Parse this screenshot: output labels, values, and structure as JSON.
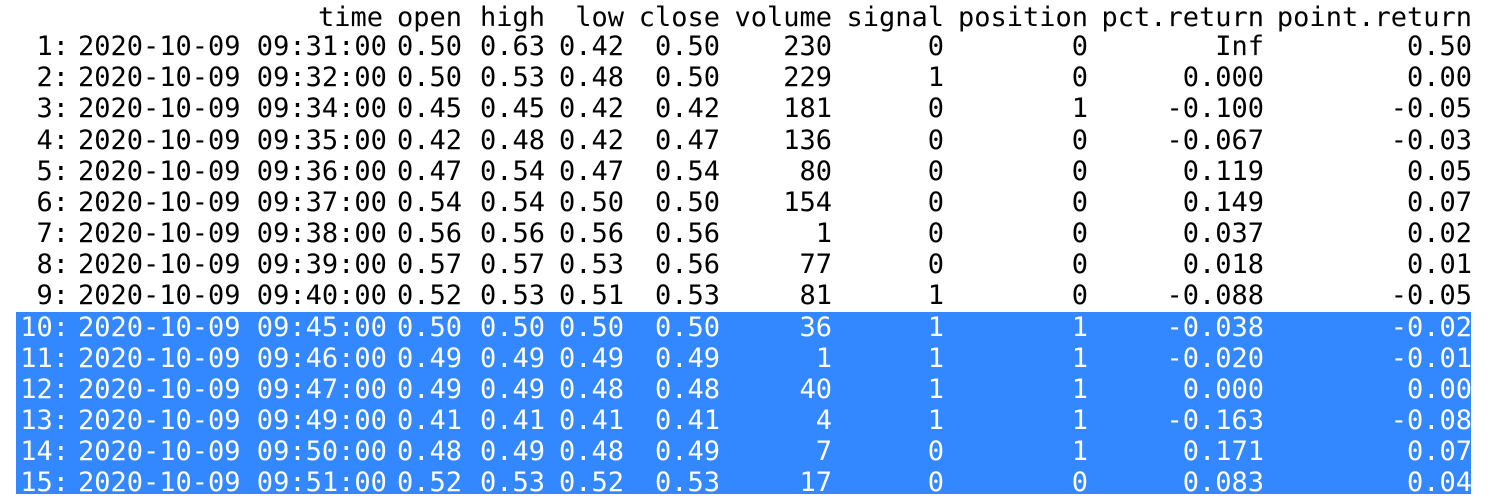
{
  "table": {
    "columns": [
      "",
      "time",
      "open",
      "high",
      "low",
      "close",
      "volume",
      "signal",
      "position",
      "pct.return",
      "point.return"
    ],
    "rows": [
      {
        "idx": "1:",
        "time": "2020-10-09 09:31:00",
        "open": "0.50",
        "high": "0.63",
        "low": "0.42",
        "close": "0.50",
        "volume": "230",
        "signal": "0",
        "position": "0",
        "pct_return": "Inf",
        "point_return": "0.50",
        "selected": false
      },
      {
        "idx": "2:",
        "time": "2020-10-09 09:32:00",
        "open": "0.50",
        "high": "0.53",
        "low": "0.48",
        "close": "0.50",
        "volume": "229",
        "signal": "1",
        "position": "0",
        "pct_return": "0.000",
        "point_return": "0.00",
        "selected": false
      },
      {
        "idx": "3:",
        "time": "2020-10-09 09:34:00",
        "open": "0.45",
        "high": "0.45",
        "low": "0.42",
        "close": "0.42",
        "volume": "181",
        "signal": "0",
        "position": "1",
        "pct_return": "-0.100",
        "point_return": "-0.05",
        "selected": false
      },
      {
        "idx": "4:",
        "time": "2020-10-09 09:35:00",
        "open": "0.42",
        "high": "0.48",
        "low": "0.42",
        "close": "0.47",
        "volume": "136",
        "signal": "0",
        "position": "0",
        "pct_return": "-0.067",
        "point_return": "-0.03",
        "selected": false
      },
      {
        "idx": "5:",
        "time": "2020-10-09 09:36:00",
        "open": "0.47",
        "high": "0.54",
        "low": "0.47",
        "close": "0.54",
        "volume": "80",
        "signal": "0",
        "position": "0",
        "pct_return": "0.119",
        "point_return": "0.05",
        "selected": false
      },
      {
        "idx": "6:",
        "time": "2020-10-09 09:37:00",
        "open": "0.54",
        "high": "0.54",
        "low": "0.50",
        "close": "0.50",
        "volume": "154",
        "signal": "0",
        "position": "0",
        "pct_return": "0.149",
        "point_return": "0.07",
        "selected": false
      },
      {
        "idx": "7:",
        "time": "2020-10-09 09:38:00",
        "open": "0.56",
        "high": "0.56",
        "low": "0.56",
        "close": "0.56",
        "volume": "1",
        "signal": "0",
        "position": "0",
        "pct_return": "0.037",
        "point_return": "0.02",
        "selected": false
      },
      {
        "idx": "8:",
        "time": "2020-10-09 09:39:00",
        "open": "0.57",
        "high": "0.57",
        "low": "0.53",
        "close": "0.56",
        "volume": "77",
        "signal": "0",
        "position": "0",
        "pct_return": "0.018",
        "point_return": "0.01",
        "selected": false
      },
      {
        "idx": "9:",
        "time": "2020-10-09 09:40:00",
        "open": "0.52",
        "high": "0.53",
        "low": "0.51",
        "close": "0.53",
        "volume": "81",
        "signal": "1",
        "position": "0",
        "pct_return": "-0.088",
        "point_return": "-0.05",
        "selected": false
      },
      {
        "idx": "10:",
        "time": "2020-10-09 09:45:00",
        "open": "0.50",
        "high": "0.50",
        "low": "0.50",
        "close": "0.50",
        "volume": "36",
        "signal": "1",
        "position": "1",
        "pct_return": "-0.038",
        "point_return": "-0.02",
        "selected": true
      },
      {
        "idx": "11:",
        "time": "2020-10-09 09:46:00",
        "open": "0.49",
        "high": "0.49",
        "low": "0.49",
        "close": "0.49",
        "volume": "1",
        "signal": "1",
        "position": "1",
        "pct_return": "-0.020",
        "point_return": "-0.01",
        "selected": true
      },
      {
        "idx": "12:",
        "time": "2020-10-09 09:47:00",
        "open": "0.49",
        "high": "0.49",
        "low": "0.48",
        "close": "0.48",
        "volume": "40",
        "signal": "1",
        "position": "1",
        "pct_return": "0.000",
        "point_return": "0.00",
        "selected": true
      },
      {
        "idx": "13:",
        "time": "2020-10-09 09:49:00",
        "open": "0.41",
        "high": "0.41",
        "low": "0.41",
        "close": "0.41",
        "volume": "4",
        "signal": "1",
        "position": "1",
        "pct_return": "-0.163",
        "point_return": "-0.08",
        "selected": true
      },
      {
        "idx": "14:",
        "time": "2020-10-09 09:50:00",
        "open": "0.48",
        "high": "0.49",
        "low": "0.48",
        "close": "0.49",
        "volume": "7",
        "signal": "0",
        "position": "1",
        "pct_return": "0.171",
        "point_return": "0.07",
        "selected": true
      },
      {
        "idx": "15:",
        "time": "2020-10-09 09:51:00",
        "open": "0.52",
        "high": "0.53",
        "low": "0.52",
        "close": "0.53",
        "volume": "17",
        "signal": "0",
        "position": "0",
        "pct_return": "0.083",
        "point_return": "0.04",
        "selected": true
      }
    ]
  },
  "colors": {
    "selection": "#3388ff",
    "selected_text": "#ffffff",
    "text": "#000000",
    "background": "#ffffff"
  }
}
